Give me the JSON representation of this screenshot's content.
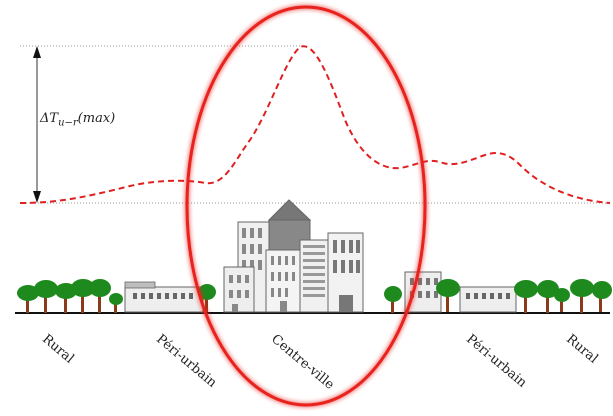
{
  "diagram": {
    "delta_label": "ΔT_{u−r}(max)",
    "delta_label_parts": {
      "base": "ΔT",
      "sub": "u−r",
      "suffix": "(max)"
    },
    "zones": [
      "Rural",
      "Péri-urbain",
      "Centre-ville",
      "Péri-urbain",
      "Rural"
    ],
    "colors": {
      "temperature_curve": "#e02020",
      "highlight_ellipse": "#e8201e",
      "tree_foliage": "#1e8a1e",
      "tree_trunk": "#8b3a1a",
      "building_fill": "#eeeeee",
      "building_dark": "#777777",
      "ground_line": "#111111",
      "reference_line": "#999999"
    }
  }
}
